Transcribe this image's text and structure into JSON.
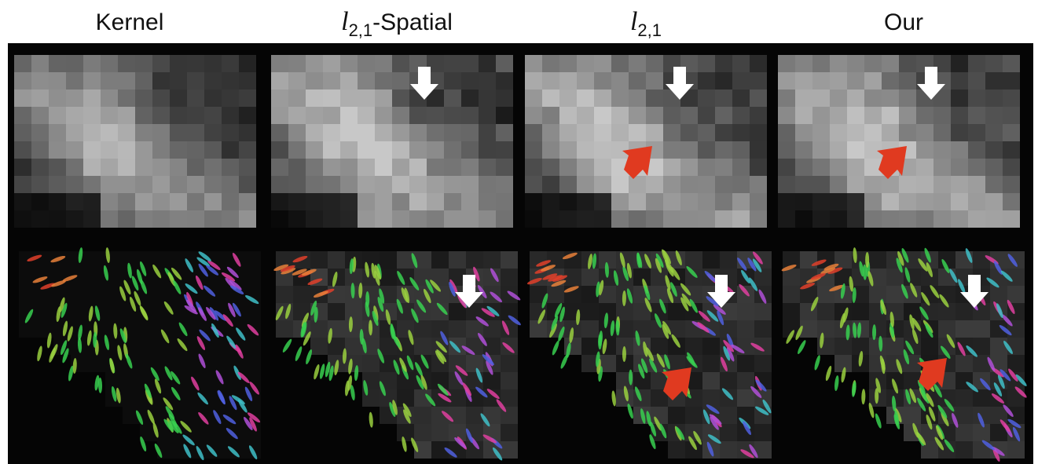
{
  "columns": [
    {
      "title": {
        "text": "Kernel"
      }
    },
    {
      "title": {
        "symbol": "l",
        "subscript": "2,1",
        "suffix": "-Spatial"
      }
    },
    {
      "title": {
        "symbol": "l",
        "subscript": "2,1"
      }
    },
    {
      "title": {
        "text": "Our"
      }
    }
  ]
}
